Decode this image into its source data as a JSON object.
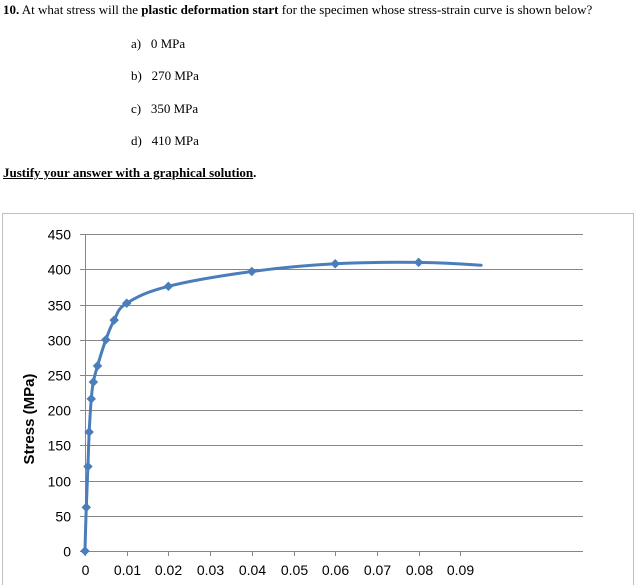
{
  "question": {
    "number": "10.",
    "text_a": " At what stress will the ",
    "text_bold": "plastic deformation start",
    "text_b": " for the specimen whose stress-strain curve is shown below?"
  },
  "options": [
    {
      "letter": "a)",
      "text": "0 MPa"
    },
    {
      "letter": "b)",
      "text": "270 MPa"
    },
    {
      "letter": "c)",
      "text": "350 MPa"
    },
    {
      "letter": "d)",
      "text": "410 MPa"
    }
  ],
  "instruction": {
    "underlined": "Justify your answer with a graphical solution",
    "tail": "."
  },
  "colors": {
    "series": "#4a7ebb",
    "grid": "#868686",
    "axis": "#868686"
  },
  "chart_data": {
    "type": "line",
    "title": "",
    "xlabel": "",
    "ylabel": "Stress (MPa)",
    "xlim": [
      0,
      0.095
    ],
    "ylim": [
      0,
      450
    ],
    "x_ticks": [
      0,
      0.01,
      0.02,
      0.03,
      0.04,
      0.05,
      0.06,
      0.07,
      0.08,
      0.09
    ],
    "x_tick_labels": [
      "0",
      "0.01",
      "0.02",
      "0.03",
      "0.04",
      "0.05",
      "0.06",
      "0.07",
      "0.08",
      "0.09"
    ],
    "y_ticks": [
      0,
      50,
      100,
      150,
      200,
      250,
      300,
      350,
      400,
      450
    ],
    "y_tick_labels": [
      "0",
      "50",
      "100",
      "150",
      "200",
      "250",
      "300",
      "350",
      "400",
      "450"
    ],
    "grid": true,
    "legend": "none",
    "series": [
      {
        "marker": "diamond",
        "points": [
          [
            0,
            0
          ],
          [
            0.0003,
            62
          ],
          [
            0.0007,
            120
          ],
          [
            0.001,
            169
          ],
          [
            0.0015,
            216
          ],
          [
            0.002,
            240
          ],
          [
            0.003,
            263
          ],
          [
            0.005,
            300
          ],
          [
            0.007,
            328
          ],
          [
            0.01,
            352
          ],
          [
            0.02,
            376
          ],
          [
            0.04,
            397
          ],
          [
            0.06,
            408
          ],
          [
            0.08,
            410
          ]
        ],
        "curve_end": [
          0.095,
          406
        ]
      }
    ]
  }
}
